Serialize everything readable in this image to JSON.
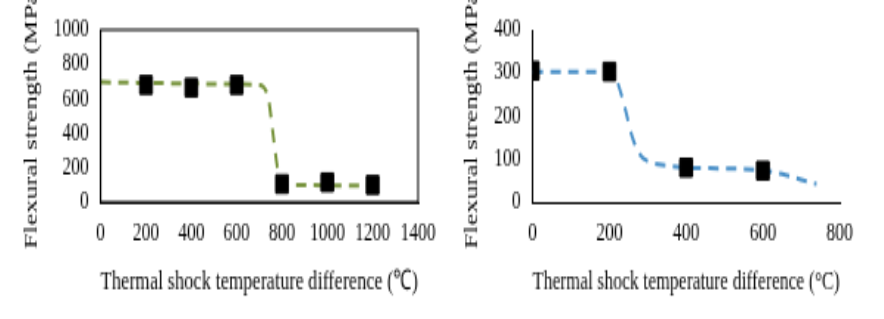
{
  "chart_data": [
    {
      "type": "scatter",
      "x_label": "Thermal shock temperature difference (℃)",
      "y_label": "Flexural strength (MPa)",
      "xlim": [
        0,
        1400
      ],
      "xticks": [
        0,
        200,
        400,
        600,
        800,
        1000,
        1200,
        1400
      ],
      "ylim": [
        0,
        1000
      ],
      "yticks": [
        0,
        200,
        400,
        600,
        800,
        1000
      ],
      "grid": false,
      "series": [
        {
          "type": "scatter",
          "color": "#000000",
          "marker": "square",
          "x": [
            200,
            400,
            600,
            800,
            1000,
            1200
          ],
          "values": [
            680,
            665,
            680,
            105,
            115,
            100
          ]
        },
        {
          "type": "line",
          "color": "#77933c",
          "line_style": "dashed",
          "x": [
            0,
            200,
            400,
            600,
            700,
            740,
            760,
            780,
            800,
            850,
            1000,
            1200
          ],
          "values": [
            697,
            692,
            688,
            684,
            680,
            600,
            400,
            200,
            120,
            100,
            97,
            95
          ]
        }
      ]
    },
    {
      "type": "scatter",
      "x_label": "Thermal shock temperature difference (°C)",
      "y_label": "Flexural strength (MPa)",
      "xlim": [
        0,
        800
      ],
      "xticks": [
        0,
        200,
        400,
        600,
        800
      ],
      "ylim": [
        0,
        400
      ],
      "yticks": [
        0,
        100,
        200,
        300,
        400
      ],
      "grid": false,
      "series": [
        {
          "type": "scatter",
          "color": "#000000",
          "marker": "square",
          "x": [
            0,
            200,
            400,
            600
          ],
          "values": [
            305,
            303,
            80,
            73
          ],
          "errors": [
            null,
            10,
            10,
            10
          ]
        },
        {
          "type": "line",
          "color": "#4a90c8",
          "line_style": "dashed",
          "x": [
            0,
            200,
            220,
            240,
            260,
            280,
            300,
            350,
            400,
            500,
            600,
            650,
            700,
            740
          ],
          "values": [
            303,
            302,
            280,
            220,
            150,
            110,
            95,
            85,
            80,
            78,
            74,
            65,
            52,
            42
          ]
        }
      ]
    }
  ]
}
